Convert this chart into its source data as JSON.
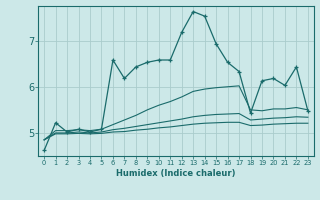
{
  "background_color": "#cce8e8",
  "grid_color": "#aacccc",
  "line_color": "#1a6b6b",
  "xlabel": "Humidex (Indice chaleur)",
  "xlim": [
    -0.5,
    23.5
  ],
  "ylim": [
    4.5,
    7.75
  ],
  "yticks": [
    5,
    6,
    7
  ],
  "xticks": [
    0,
    1,
    2,
    3,
    4,
    5,
    6,
    7,
    8,
    9,
    10,
    11,
    12,
    13,
    14,
    15,
    16,
    17,
    18,
    19,
    20,
    21,
    22,
    23
  ],
  "curve1": {
    "x": [
      0,
      1,
      2,
      3,
      4,
      5,
      6,
      7,
      8,
      9,
      10,
      11,
      12,
      13,
      14,
      15,
      16,
      17,
      18,
      19,
      20,
      21,
      22,
      23
    ],
    "y": [
      4.62,
      5.22,
      5.02,
      5.08,
      5.02,
      5.08,
      6.58,
      6.18,
      6.43,
      6.53,
      6.58,
      6.58,
      7.18,
      7.63,
      7.53,
      6.93,
      6.53,
      6.33,
      5.43,
      6.13,
      6.18,
      6.03,
      6.43,
      5.48
    ]
  },
  "curve2": {
    "x": [
      0,
      1,
      2,
      3,
      4,
      5,
      6,
      7,
      8,
      9,
      10,
      11,
      12,
      13,
      14,
      15,
      16,
      17,
      18,
      19,
      20,
      21,
      22,
      23
    ],
    "y": [
      4.85,
      5.05,
      5.05,
      5.07,
      5.05,
      5.08,
      5.18,
      5.28,
      5.38,
      5.5,
      5.6,
      5.68,
      5.78,
      5.9,
      5.95,
      5.98,
      6.0,
      6.02,
      5.5,
      5.48,
      5.52,
      5.52,
      5.55,
      5.5
    ]
  },
  "curve3": {
    "x": [
      0,
      1,
      2,
      3,
      4,
      5,
      6,
      7,
      8,
      9,
      10,
      11,
      12,
      13,
      14,
      15,
      16,
      17,
      18,
      19,
      20,
      21,
      22,
      23
    ],
    "y": [
      4.85,
      5.0,
      5.0,
      5.02,
      5.0,
      5.02,
      5.07,
      5.1,
      5.14,
      5.18,
      5.22,
      5.26,
      5.3,
      5.35,
      5.38,
      5.4,
      5.41,
      5.42,
      5.28,
      5.3,
      5.32,
      5.33,
      5.35,
      5.34
    ]
  },
  "curve4": {
    "x": [
      0,
      1,
      2,
      3,
      4,
      5,
      6,
      7,
      8,
      9,
      10,
      11,
      12,
      13,
      14,
      15,
      16,
      17,
      18,
      19,
      20,
      21,
      22,
      23
    ],
    "y": [
      4.85,
      4.98,
      4.98,
      4.99,
      4.98,
      4.99,
      5.02,
      5.03,
      5.06,
      5.08,
      5.11,
      5.13,
      5.16,
      5.19,
      5.21,
      5.22,
      5.23,
      5.23,
      5.16,
      5.17,
      5.19,
      5.2,
      5.21,
      5.21
    ]
  }
}
